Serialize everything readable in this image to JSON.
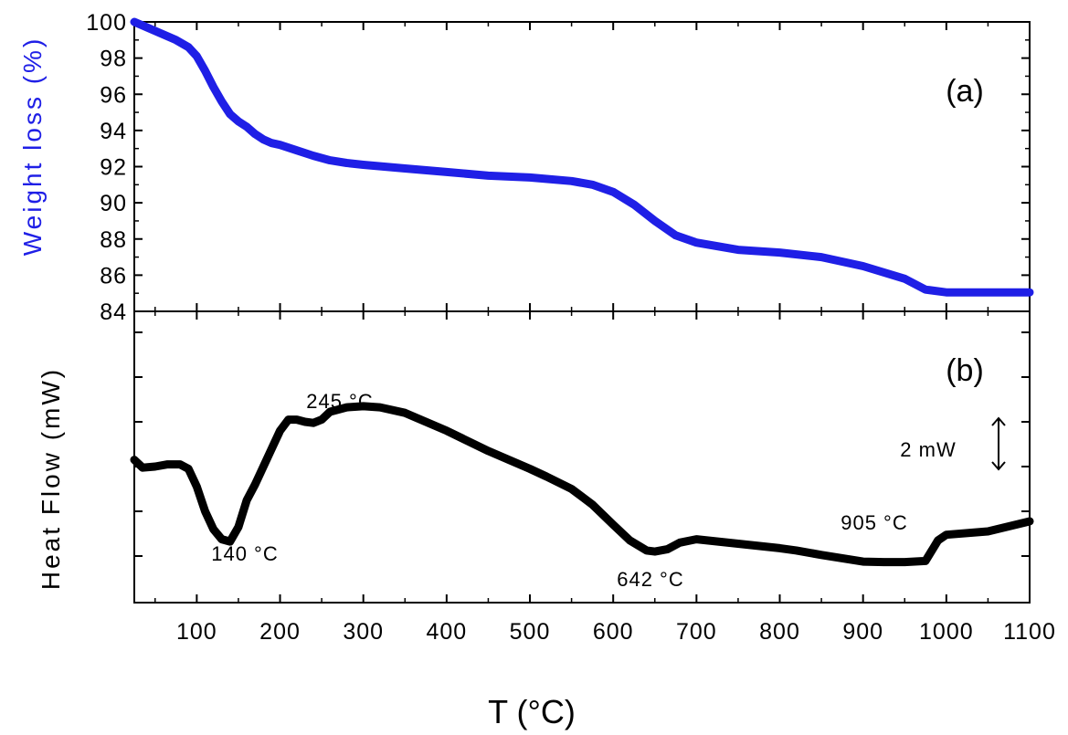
{
  "chart_data": [
    {
      "type": "line",
      "panel_label": "(a)",
      "xlabel": "T (°C)",
      "ylabel": "Weight loss (%)",
      "xlim": [
        25,
        1100
      ],
      "ylim": [
        84,
        100
      ],
      "x_ticks": [
        100,
        200,
        300,
        400,
        500,
        600,
        700,
        800,
        900,
        1000,
        1100
      ],
      "y_ticks": [
        84,
        86,
        88,
        90,
        92,
        94,
        96,
        98,
        100
      ],
      "colors": {
        "line": "#1f1fe6",
        "ylabel": "#1f1fe6"
      },
      "series": [
        {
          "x": [
            25,
            50,
            75,
            90,
            100,
            110,
            120,
            130,
            140,
            150,
            160,
            170,
            180,
            190,
            200,
            220,
            240,
            260,
            280,
            300,
            350,
            400,
            450,
            500,
            550,
            575,
            600,
            625,
            650,
            675,
            700,
            750,
            800,
            850,
            900,
            950,
            975,
            1000,
            1100
          ],
          "y": [
            100,
            99.5,
            99.0,
            98.6,
            98.1,
            97.3,
            96.4,
            95.6,
            94.9,
            94.5,
            94.2,
            93.8,
            93.5,
            93.3,
            93.2,
            92.9,
            92.6,
            92.35,
            92.2,
            92.1,
            91.9,
            91.7,
            91.5,
            91.4,
            91.2,
            91.0,
            90.6,
            89.9,
            89.0,
            88.2,
            87.8,
            87.4,
            87.25,
            87.0,
            86.5,
            85.8,
            85.2,
            85.05,
            85.05
          ]
        }
      ],
      "grid": false
    },
    {
      "type": "line",
      "panel_label": "(b)",
      "ylabel": "Heat Flow (mW)",
      "xlim": [
        25,
        1100
      ],
      "scale_bar": {
        "label": "2 mW",
        "value_mW": 2
      },
      "annotations": [
        {
          "text": "140 °C",
          "x": 140
        },
        {
          "text": "245 °C",
          "x": 245
        },
        {
          "text": "642 °C",
          "x": 642
        },
        {
          "text": "905 °C",
          "x": 905
        }
      ],
      "colors": {
        "line": "#000000"
      },
      "series": [
        {
          "x": [
            25,
            35,
            50,
            65,
            80,
            90,
            100,
            110,
            120,
            130,
            140,
            150,
            160,
            170,
            180,
            190,
            200,
            210,
            220,
            230,
            240,
            250,
            260,
            280,
            300,
            320,
            350,
            400,
            450,
            500,
            520,
            550,
            575,
            600,
            620,
            640,
            650,
            665,
            680,
            700,
            750,
            800,
            820,
            850,
            900,
            925,
            950,
            975,
            990,
            1000,
            1050,
            1100
          ],
          "y": [
            4.3,
            3.95,
            4.0,
            4.1,
            4.1,
            3.9,
            3.1,
            2.0,
            1.2,
            0.75,
            0.65,
            1.3,
            2.5,
            3.2,
            4.0,
            4.8,
            5.6,
            6.1,
            6.1,
            6.0,
            5.95,
            6.1,
            6.45,
            6.65,
            6.7,
            6.65,
            6.4,
            5.6,
            4.7,
            3.9,
            3.55,
            3.0,
            2.3,
            1.4,
            0.7,
            0.25,
            0.2,
            0.3,
            0.6,
            0.75,
            0.55,
            0.35,
            0.25,
            0.05,
            -0.25,
            -0.27,
            -0.27,
            -0.22,
            0.7,
            0.95,
            1.1,
            1.55
          ]
        }
      ],
      "grid": false
    }
  ]
}
